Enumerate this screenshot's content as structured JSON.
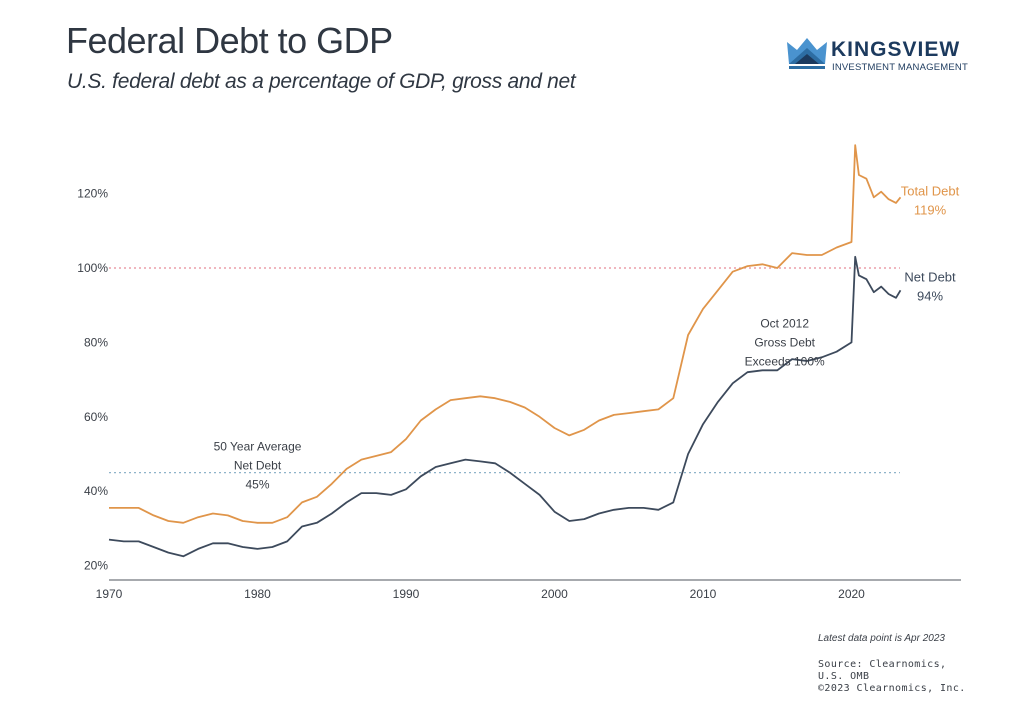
{
  "header": {
    "title": "Federal Debt to GDP",
    "subtitle": "U.S. federal debt as a percentage of GDP, gross and net"
  },
  "logo": {
    "name": "KINGSVIEW",
    "tagline": "INVESTMENT MANAGEMENT",
    "icon": "crown-icon",
    "colors": {
      "dark": "#1c3a5e",
      "mid": "#2d6da3",
      "light": "#4a93cf"
    }
  },
  "footer": {
    "note": "Latest data point is Apr 2023",
    "source_lines": [
      "Source: Clearnomics,",
      "U.S. OMB",
      "©2023 Clearnomics, Inc."
    ]
  },
  "chart_data": {
    "type": "line",
    "title": "Federal Debt to GDP",
    "subtitle": "U.S. federal debt as a percentage of GDP, gross and net",
    "xlabel": "",
    "ylabel": "",
    "xlim": [
      1970,
      2027
    ],
    "ylim": [
      17,
      135
    ],
    "x_ticks": [
      1970,
      1980,
      1990,
      2000,
      2010,
      2020
    ],
    "x_tick_labels": [
      "1970",
      "1980",
      "1990",
      "2000",
      "2010",
      "2020"
    ],
    "y_ticks": [
      20,
      40,
      60,
      80,
      100,
      120
    ],
    "y_tick_labels": [
      "20%",
      "40%",
      "60%",
      "80%",
      "100%",
      "120%"
    ],
    "grid": false,
    "legend": "none (end-of-line labels at right)",
    "series": [
      {
        "name": "Total Debt",
        "color": "#e0954a",
        "end_label": "Total Debt",
        "end_value_label": "119%",
        "x": [
          1970,
          1971,
          1972,
          1973,
          1974,
          1975,
          1976,
          1977,
          1978,
          1979,
          1980,
          1981,
          1982,
          1983,
          1984,
          1985,
          1986,
          1987,
          1988,
          1989,
          1990,
          1991,
          1992,
          1993,
          1994,
          1995,
          1996,
          1997,
          1998,
          1999,
          2000,
          2001,
          2002,
          2003,
          2004,
          2005,
          2006,
          2007,
          2008,
          2009,
          2010,
          2011,
          2012,
          2013,
          2014,
          2015,
          2016,
          2017,
          2018,
          2019,
          2020.0,
          2020.25,
          2020.5,
          2021.0,
          2021.5,
          2022.0,
          2022.5,
          2023.0,
          2023.3
        ],
        "values": [
          35.5,
          35.5,
          35.5,
          33.5,
          32,
          31.5,
          33,
          34,
          33.5,
          32,
          31.5,
          31.5,
          33,
          37,
          38.5,
          42,
          46,
          48.5,
          49.5,
          50.5,
          54,
          59,
          62,
          64.5,
          65,
          65.5,
          65,
          64,
          62.5,
          60,
          57,
          55,
          56.5,
          59,
          60.5,
          61,
          61.5,
          62,
          65,
          82,
          89,
          94,
          99,
          100.5,
          101,
          100,
          104,
          103.5,
          103.5,
          105.5,
          107,
          133,
          125,
          124,
          119,
          120.5,
          118.5,
          117.5,
          119
        ]
      },
      {
        "name": "Net Debt",
        "color": "#3d4a5c",
        "end_label": "Net Debt",
        "end_value_label": "94%",
        "x": [
          1970,
          1971,
          1972,
          1973,
          1974,
          1975,
          1976,
          1977,
          1978,
          1979,
          1980,
          1981,
          1982,
          1983,
          1984,
          1985,
          1986,
          1987,
          1988,
          1989,
          1990,
          1991,
          1992,
          1993,
          1994,
          1995,
          1996,
          1997,
          1998,
          1999,
          2000,
          2001,
          2002,
          2003,
          2004,
          2005,
          2006,
          2007,
          2008,
          2009,
          2010,
          2011,
          2012,
          2013,
          2014,
          2015,
          2016,
          2017,
          2018,
          2019,
          2020.0,
          2020.25,
          2020.5,
          2021.0,
          2021.5,
          2022.0,
          2022.5,
          2023.0,
          2023.3
        ],
        "values": [
          27,
          26.5,
          26.5,
          25,
          23.5,
          22.5,
          24.5,
          26,
          26,
          25,
          24.5,
          25,
          26.5,
          30.5,
          31.5,
          34,
          37,
          39.5,
          39.5,
          39,
          40.5,
          44,
          46.5,
          47.5,
          48.5,
          48,
          47.5,
          45,
          42,
          39,
          34.5,
          32,
          32.5,
          34,
          35,
          35.5,
          35.5,
          35,
          37,
          50,
          58,
          64,
          69,
          72,
          72.5,
          72.5,
          75.5,
          75,
          76,
          77.5,
          80,
          103,
          98,
          97,
          93.5,
          95,
          93,
          92,
          94
        ]
      }
    ],
    "reference_lines": [
      {
        "name": "100% threshold",
        "value": 100,
        "color": "#e88a96",
        "style": "dotted"
      },
      {
        "name": "50 Year Average Net Debt",
        "value": 45,
        "color": "#8fb3c9",
        "style": "dotted"
      }
    ],
    "annotations": [
      {
        "name": "avg-annotation",
        "lines": [
          "50 Year Average",
          "Net Debt",
          "45%"
        ],
        "x": 1980,
        "y": 51
      },
      {
        "name": "oct-2012-annotation",
        "lines": [
          "Oct 2012",
          "Gross Debt",
          "Exceeds 100%"
        ],
        "x": 2015.5,
        "y": 84
      }
    ]
  }
}
